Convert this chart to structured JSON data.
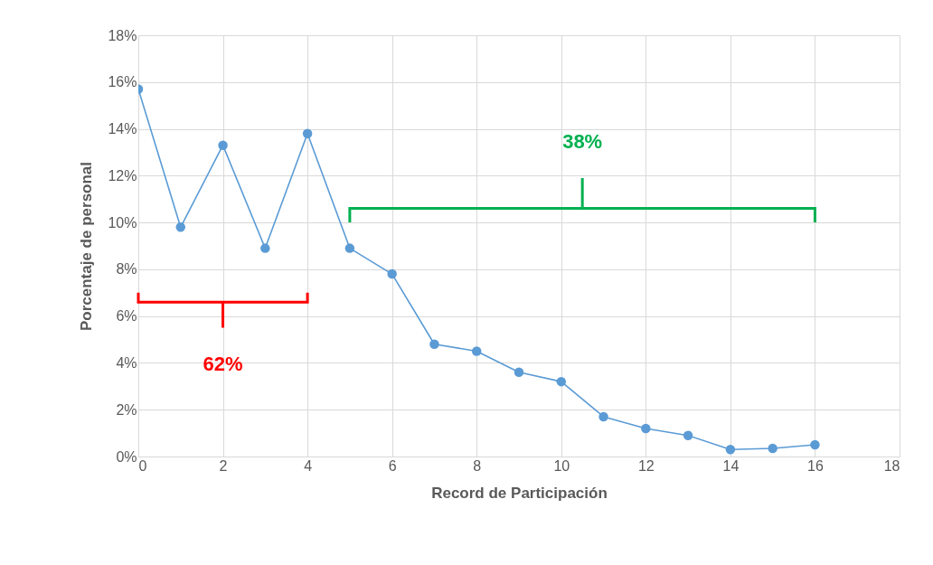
{
  "chart_data": {
    "type": "line",
    "xlabel": "Record de Participación",
    "ylabel": "Porcentaje de personal",
    "x": [
      0,
      1,
      2,
      3,
      4,
      5,
      6,
      7,
      8,
      9,
      10,
      11,
      12,
      13,
      14,
      15,
      16
    ],
    "series": [
      {
        "color": "#5b9bd5",
        "values": [
          15.7,
          9.8,
          13.3,
          8.9,
          13.8,
          8.9,
          7.8,
          4.8,
          4.5,
          3.6,
          3.2,
          1.7,
          1.2,
          0.9,
          0.3,
          0.35,
          0.5
        ]
      }
    ],
    "xlim": [
      0,
      18
    ],
    "xticks": [
      0,
      2,
      4,
      6,
      8,
      10,
      12,
      14,
      16,
      18
    ],
    "ylim": [
      0,
      18
    ],
    "yticks": [
      {
        "value": 0,
        "label": "0%"
      },
      {
        "value": 2,
        "label": "2%"
      },
      {
        "value": 4,
        "label": "4%"
      },
      {
        "value": 6,
        "label": "6%"
      },
      {
        "value": 8,
        "label": "8%"
      },
      {
        "value": 10,
        "label": "10%"
      },
      {
        "value": 12,
        "label": "12%"
      },
      {
        "value": 14,
        "label": "14%"
      },
      {
        "value": 16,
        "label": "16%"
      },
      {
        "value": 18,
        "label": "18%"
      }
    ],
    "grid": true,
    "marker": "circle",
    "annotations": [
      "62%",
      "38%"
    ]
  }
}
